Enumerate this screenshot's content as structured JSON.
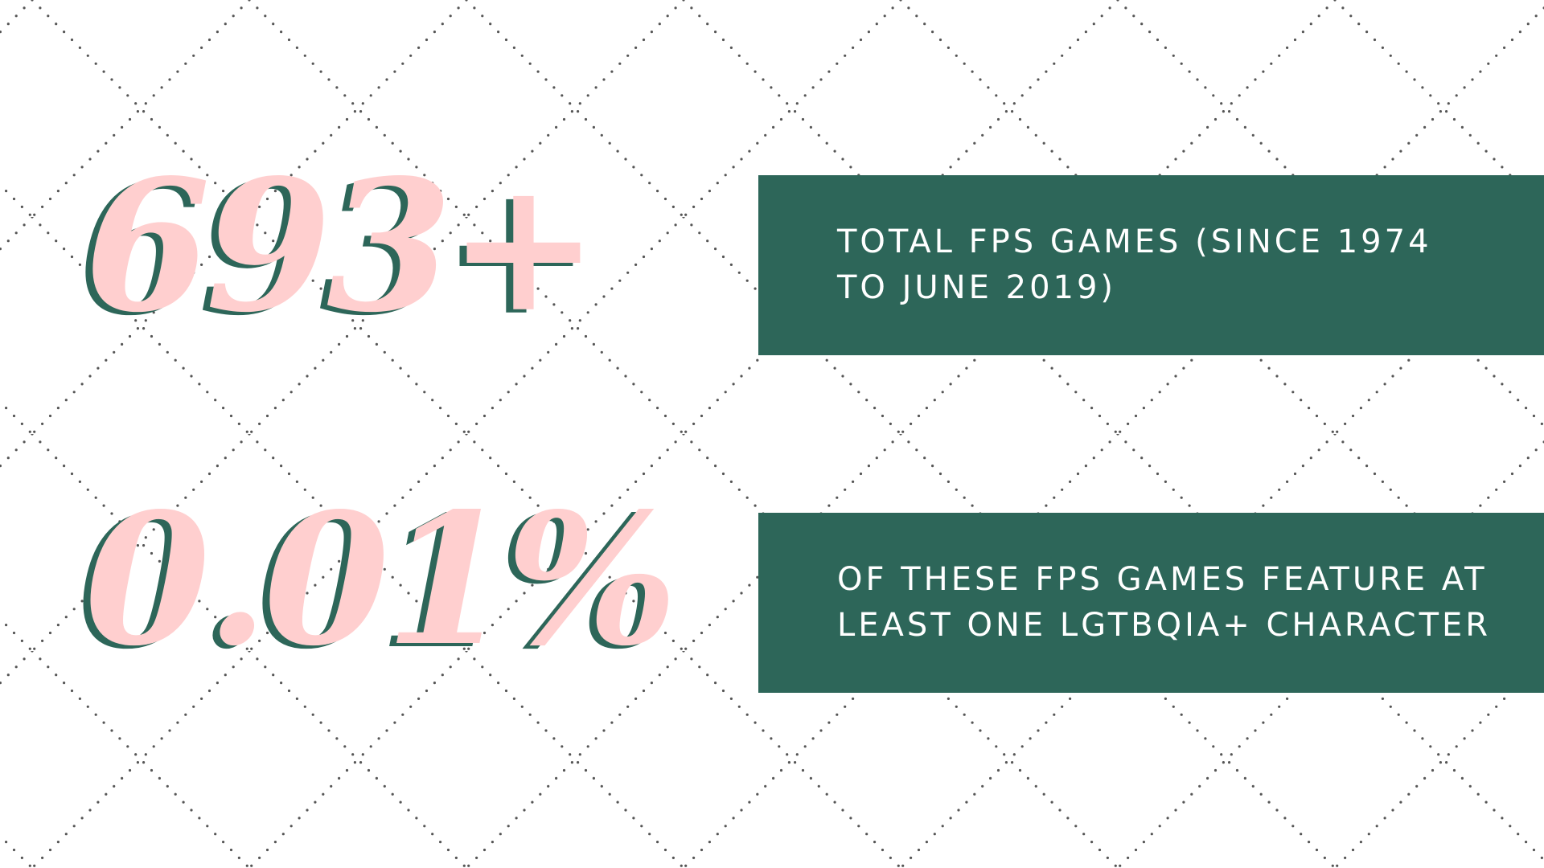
{
  "stats": [
    {
      "number": "693+",
      "description_lines": [
        "TOTAL FPS GAMES (SINCE 1974",
        "TO JUNE 2019)"
      ]
    },
    {
      "number": "0.01%",
      "description_lines": [
        "OF THESE FPS GAMES FEATURE AT",
        "LEAST ONE LGTBQIA+ CHARACTER"
      ]
    }
  ],
  "colors": {
    "background": "#ffffff",
    "banner": "#2d6659",
    "number_fill": "#ffcfcf",
    "number_shadow": "#2d6659",
    "pattern_dots": "#555555",
    "banner_text": "#ffffff"
  }
}
